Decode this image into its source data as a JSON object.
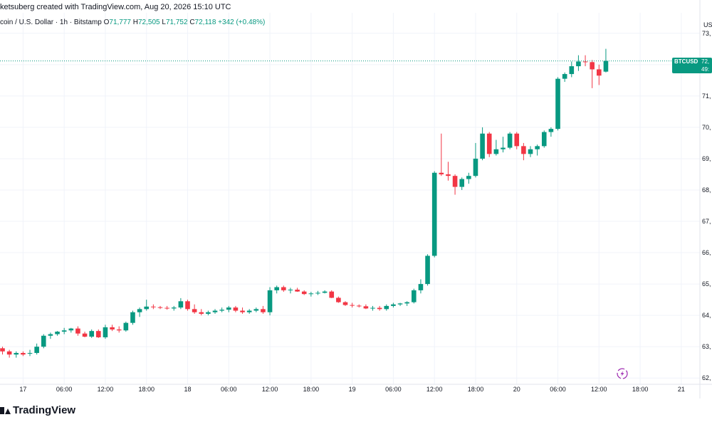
{
  "header": {
    "caption": "ketsuberg created with TradingView.com, Aug 20, 2026 15:10 UTC",
    "symbol_desc": "coin / U.S. Dollar · 1h · Bitstamp",
    "o_label": "O",
    "o_value": "71,777",
    "h_label": "H",
    "h_value": "72,505",
    "l_label": "L",
    "l_value": "71,752",
    "c_label": "C",
    "c_value": "72,118",
    "change": "+342 (+0.48%)"
  },
  "currency_label": "US",
  "price_tag": {
    "symbol": "BTCUSD",
    "price": "72,",
    "countdown": "49:"
  },
  "brand": "TradingView",
  "colors": {
    "up": "#089981",
    "down": "#f23645",
    "grid": "#f0f3fa",
    "axis_text": "#131722",
    "last_price_line": "#089981",
    "replay_icon": "#9c27b0"
  },
  "icons": {
    "replay": "replay-lightning-icon",
    "logo": "tradingview-logo-icon"
  },
  "chart_data": {
    "type": "candlestick",
    "title": "",
    "xlabel": "",
    "ylabel": "",
    "ylim": [
      61800,
      73200
    ],
    "grid": true,
    "y_ticks": [
      {
        "value": 62000,
        "label": "62,"
      },
      {
        "value": 63000,
        "label": "63,"
      },
      {
        "value": 64000,
        "label": "64,"
      },
      {
        "value": 65000,
        "label": "65,"
      },
      {
        "value": 66000,
        "label": "66,"
      },
      {
        "value": 67000,
        "label": "67,"
      },
      {
        "value": 68000,
        "label": "68,"
      },
      {
        "value": 69000,
        "label": "69,"
      },
      {
        "value": 70000,
        "label": "70,"
      },
      {
        "value": 71000,
        "label": "71,"
      },
      {
        "value": 72000,
        "label": "72,"
      },
      {
        "value": 73000,
        "label": "73,"
      }
    ],
    "x_ticks": [
      {
        "index": 3,
        "label": "17"
      },
      {
        "index": 9,
        "label": "06:00"
      },
      {
        "index": 15,
        "label": "12:00"
      },
      {
        "index": 21,
        "label": "18:00"
      },
      {
        "index": 27,
        "label": "18"
      },
      {
        "index": 33,
        "label": "06:00"
      },
      {
        "index": 39,
        "label": "12:00"
      },
      {
        "index": 45,
        "label": "18:00"
      },
      {
        "index": 51,
        "label": "19"
      },
      {
        "index": 57,
        "label": "06:00"
      },
      {
        "index": 63,
        "label": "12:00"
      },
      {
        "index": 69,
        "label": "18:00"
      },
      {
        "index": 75,
        "label": "20"
      },
      {
        "index": 81,
        "label": "06:00"
      },
      {
        "index": 87,
        "label": "12:00"
      },
      {
        "index": 93,
        "label": "18:00"
      },
      {
        "index": 99,
        "label": "21"
      }
    ],
    "last_price": 72118,
    "candles": [
      [
        62950,
        63000,
        62750,
        62850
      ],
      [
        62850,
        62900,
        62650,
        62750
      ],
      [
        62750,
        62850,
        62650,
        62800
      ],
      [
        62800,
        62850,
        62700,
        62750
      ],
      [
        62780,
        62900,
        62700,
        62800
      ],
      [
        62800,
        63100,
        62750,
        63000
      ],
      [
        63000,
        63400,
        62950,
        63350
      ],
      [
        63350,
        63450,
        63250,
        63400
      ],
      [
        63400,
        63500,
        63350,
        63480
      ],
      [
        63480,
        63600,
        63400,
        63520
      ],
      [
        63520,
        63600,
        63450,
        63580
      ],
      [
        63580,
        63650,
        63350,
        63420
      ],
      [
        63420,
        63480,
        63300,
        63320
      ],
      [
        63320,
        63550,
        63280,
        63500
      ],
      [
        63500,
        63550,
        63280,
        63300
      ],
      [
        63300,
        63700,
        63250,
        63620
      ],
      [
        63620,
        63700,
        63500,
        63550
      ],
      [
        63550,
        63650,
        63450,
        63520
      ],
      [
        63520,
        63800,
        63480,
        63760
      ],
      [
        63760,
        64150,
        63700,
        64100
      ],
      [
        64100,
        64250,
        63950,
        64200
      ],
      [
        64200,
        64500,
        64150,
        64280
      ],
      [
        64280,
        64350,
        64200,
        64260
      ],
      [
        64260,
        64300,
        64200,
        64240
      ],
      [
        64240,
        64300,
        64180,
        64220
      ],
      [
        64220,
        64300,
        64150,
        64250
      ],
      [
        64250,
        64550,
        64200,
        64450
      ],
      [
        64450,
        64500,
        64150,
        64200
      ],
      [
        64200,
        64350,
        64050,
        64100
      ],
      [
        64100,
        64200,
        64000,
        64050
      ],
      [
        64050,
        64150,
        64000,
        64100
      ],
      [
        64100,
        64200,
        64050,
        64150
      ],
      [
        64150,
        64250,
        64100,
        64180
      ],
      [
        64180,
        64300,
        64100,
        64250
      ],
      [
        64250,
        64300,
        64100,
        64150
      ],
      [
        64150,
        64250,
        64050,
        64100
      ],
      [
        64100,
        64200,
        64050,
        64150
      ],
      [
        64150,
        64250,
        64100,
        64200
      ],
      [
        64200,
        64300,
        64050,
        64100
      ],
      [
        64100,
        64900,
        64000,
        64800
      ],
      [
        64800,
        64950,
        64700,
        64900
      ],
      [
        64900,
        64950,
        64750,
        64800
      ],
      [
        64800,
        64880,
        64700,
        64820
      ],
      [
        64820,
        64880,
        64750,
        64760
      ],
      [
        64760,
        64800,
        64650,
        64680
      ],
      [
        64680,
        64750,
        64600,
        64700
      ],
      [
        64700,
        64780,
        64650,
        64720
      ],
      [
        64720,
        64800,
        64700,
        64760
      ],
      [
        64760,
        64800,
        64550,
        64560
      ],
      [
        64560,
        64600,
        64400,
        64420
      ],
      [
        64420,
        64450,
        64300,
        64330
      ],
      [
        64330,
        64400,
        64250,
        64310
      ],
      [
        64310,
        64350,
        64250,
        64290
      ],
      [
        64290,
        64350,
        64200,
        64220
      ],
      [
        64220,
        64300,
        64150,
        64240
      ],
      [
        64240,
        64300,
        64150,
        64200
      ],
      [
        64200,
        64350,
        64150,
        64300
      ],
      [
        64300,
        64400,
        64250,
        64350
      ],
      [
        64350,
        64400,
        64300,
        64380
      ],
      [
        64380,
        64450,
        64300,
        64420
      ],
      [
        64420,
        64850,
        64380,
        64800
      ],
      [
        64800,
        65150,
        64700,
        65000
      ],
      [
        65000,
        65950,
        64950,
        65900
      ],
      [
        65900,
        68600,
        65850,
        68550
      ],
      [
        68550,
        69800,
        68450,
        68500
      ],
      [
        68500,
        68900,
        68300,
        68450
      ],
      [
        68450,
        68500,
        67850,
        68100
      ],
      [
        68100,
        68400,
        68000,
        68350
      ],
      [
        68350,
        68550,
        68200,
        68450
      ],
      [
        68450,
        69500,
        68400,
        69000
      ],
      [
        69000,
        70000,
        68950,
        69800
      ],
      [
        69800,
        69850,
        69050,
        69150
      ],
      [
        69150,
        69600,
        69100,
        69300
      ],
      [
        69300,
        69700,
        69200,
        69350
      ],
      [
        69350,
        69850,
        69300,
        69800
      ],
      [
        69800,
        69850,
        69300,
        69400
      ],
      [
        69400,
        69500,
        68950,
        69150
      ],
      [
        69150,
        69400,
        69050,
        69300
      ],
      [
        69300,
        69450,
        69100,
        69400
      ],
      [
        69400,
        69900,
        69350,
        69850
      ],
      [
        69850,
        70000,
        69700,
        69950
      ],
      [
        69950,
        71600,
        69900,
        71550
      ],
      [
        71550,
        71750,
        71450,
        71700
      ],
      [
        71700,
        72100,
        71600,
        71950
      ],
      [
        71950,
        72300,
        71800,
        72100
      ],
      [
        72100,
        72300,
        71950,
        72080
      ],
      [
        72080,
        72150,
        71250,
        71850
      ],
      [
        71850,
        72000,
        71350,
        71650
      ],
      [
        71777,
        72505,
        71752,
        72118
      ]
    ]
  }
}
